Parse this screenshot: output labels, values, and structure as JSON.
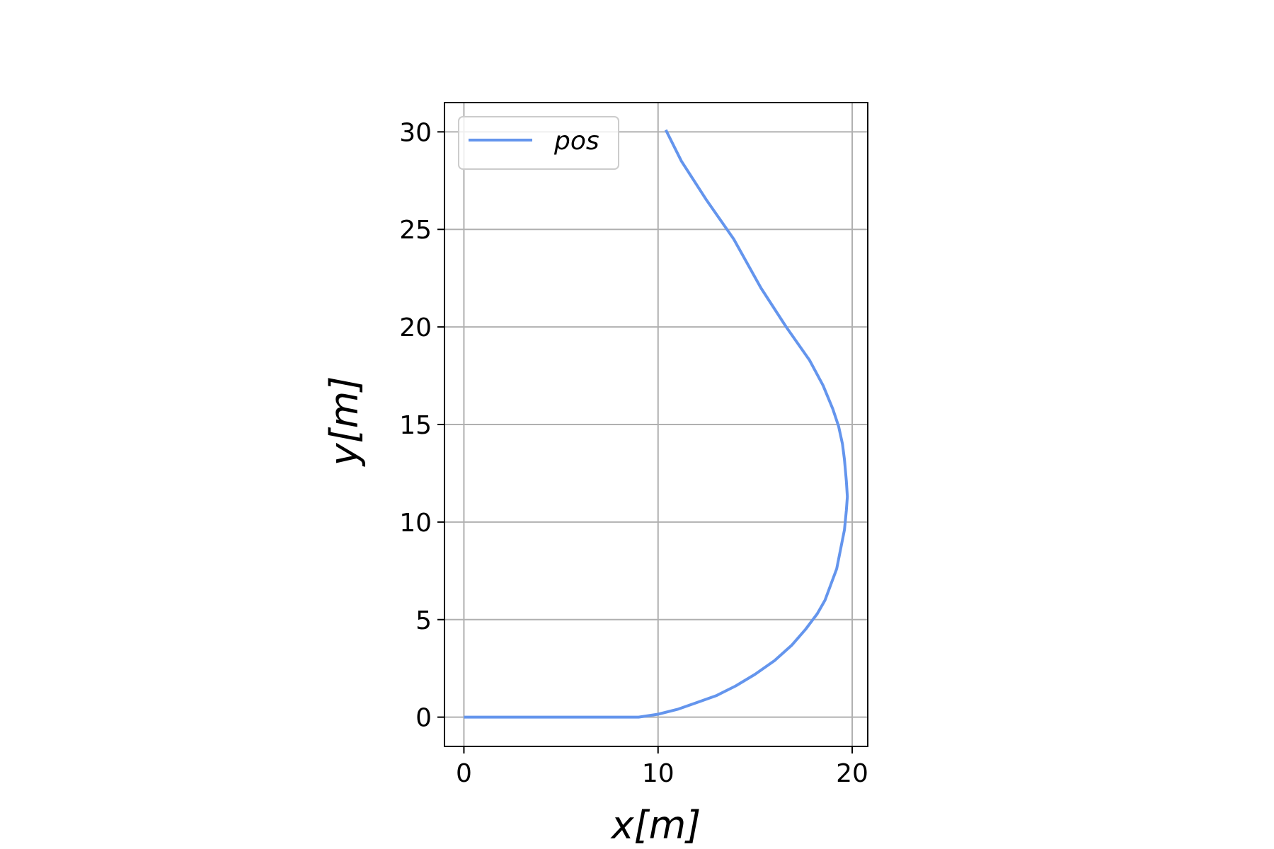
{
  "chart_data": {
    "type": "line",
    "title": "",
    "xlabel": "x[m]",
    "ylabel": "y[m]",
    "xlim": [
      -1,
      20.8
    ],
    "ylim": [
      -1.5,
      31.5
    ],
    "xticks": [
      0,
      10,
      20
    ],
    "yticks": [
      0,
      5,
      10,
      15,
      20,
      25,
      30
    ],
    "grid": true,
    "legend": {
      "placement": "top-left",
      "entries": [
        "pos"
      ]
    },
    "series": [
      {
        "name": "pos",
        "color": "#6495ED",
        "x": [
          0,
          2,
          4,
          6,
          8,
          9.0,
          10.0,
          11.0,
          12.0,
          13.0,
          14.0,
          15.0,
          16.0,
          16.9,
          17.6,
          18.2,
          18.6,
          18.9,
          19.2,
          19.4,
          19.6,
          19.7,
          19.75,
          19.7,
          19.6,
          19.5,
          19.3,
          19.0,
          18.5,
          17.8,
          16.6,
          15.3,
          13.9,
          12.5,
          11.2,
          10.4
        ],
        "y": [
          0,
          0,
          0,
          0,
          0,
          0,
          0.15,
          0.4,
          0.75,
          1.1,
          1.6,
          2.2,
          2.9,
          3.7,
          4.5,
          5.3,
          6.0,
          6.8,
          7.6,
          8.6,
          9.6,
          10.6,
          11.3,
          12.1,
          13.2,
          14.0,
          14.9,
          15.8,
          17.0,
          18.3,
          20.0,
          22.0,
          24.5,
          26.5,
          28.5,
          30.1
        ]
      }
    ]
  }
}
